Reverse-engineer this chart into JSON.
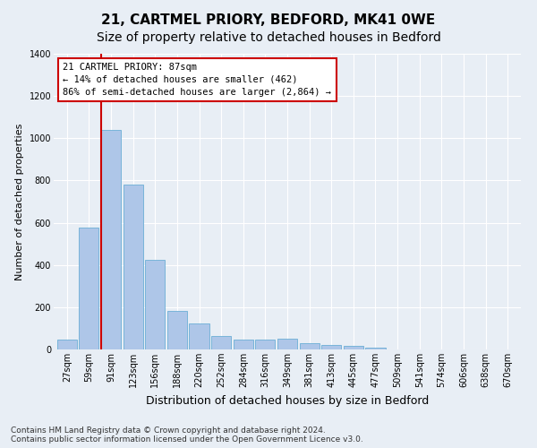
{
  "title": "21, CARTMEL PRIORY, BEDFORD, MK41 0WE",
  "subtitle": "Size of property relative to detached houses in Bedford",
  "xlabel": "Distribution of detached houses by size in Bedford",
  "ylabel": "Number of detached properties",
  "categories": [
    "27sqm",
    "59sqm",
    "91sqm",
    "123sqm",
    "156sqm",
    "188sqm",
    "220sqm",
    "252sqm",
    "284sqm",
    "316sqm",
    "349sqm",
    "381sqm",
    "413sqm",
    "445sqm",
    "477sqm",
    "509sqm",
    "541sqm",
    "574sqm",
    "606sqm",
    "638sqm",
    "670sqm"
  ],
  "values": [
    47,
    575,
    1040,
    780,
    425,
    182,
    125,
    62,
    48,
    48,
    50,
    28,
    22,
    15,
    10,
    0,
    0,
    0,
    0,
    0,
    0
  ],
  "bar_color": "#aec6e8",
  "bar_edgecolor": "#6baed6",
  "vline_x": 2,
  "vline_color": "#cc0000",
  "annotation_text": "21 CARTMEL PRIORY: 87sqm\n← 14% of detached houses are smaller (462)\n86% of semi-detached houses are larger (2,864) →",
  "annotation_box_color": "#ffffff",
  "annotation_box_edgecolor": "#cc0000",
  "ylim": [
    0,
    1400
  ],
  "yticks": [
    0,
    200,
    400,
    600,
    800,
    1000,
    1200,
    1400
  ],
  "bg_color": "#e8eef5",
  "plot_bg_color": "#e8eef5",
  "grid_color": "#ffffff",
  "footer": "Contains HM Land Registry data © Crown copyright and database right 2024.\nContains public sector information licensed under the Open Government Licence v3.0.",
  "title_fontsize": 11,
  "xlabel_fontsize": 9,
  "ylabel_fontsize": 8,
  "tick_fontsize": 7,
  "footer_fontsize": 6.5,
  "annotation_fontsize": 7.5
}
